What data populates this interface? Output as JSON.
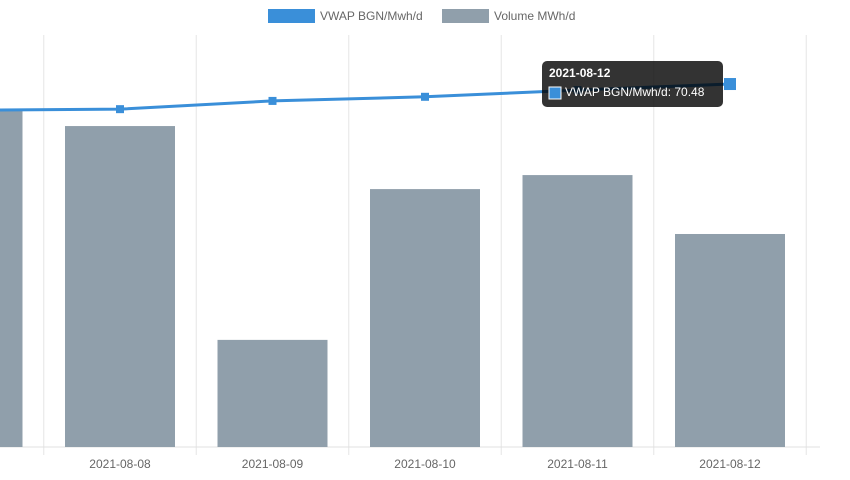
{
  "chart_data": {
    "type": "bar",
    "categories": [
      null,
      "2021-08-08",
      "2021-08-09",
      "2021-08-10",
      "2021-08-11",
      "2021-08-12"
    ],
    "series": [
      {
        "name": "VWAP BGN/Mwh/d",
        "type": "line",
        "axis": "y2",
        "color": "#3a8fd9",
        "values": [
          65.4,
          65.6,
          67.2,
          68.0,
          69.3,
          70.48
        ]
      },
      {
        "name": "Volume MWh/d",
        "type": "bar",
        "color": "#909fab",
        "values": [
          818,
          779,
          260,
          626,
          660,
          517
        ]
      }
    ],
    "ylim": [
      0,
      1000
    ],
    "y2lim": [
      0,
      80
    ],
    "tooltip": {
      "title": "2021-08-12",
      "label": "VWAP BGN/Mwh/d: 70.48"
    }
  }
}
